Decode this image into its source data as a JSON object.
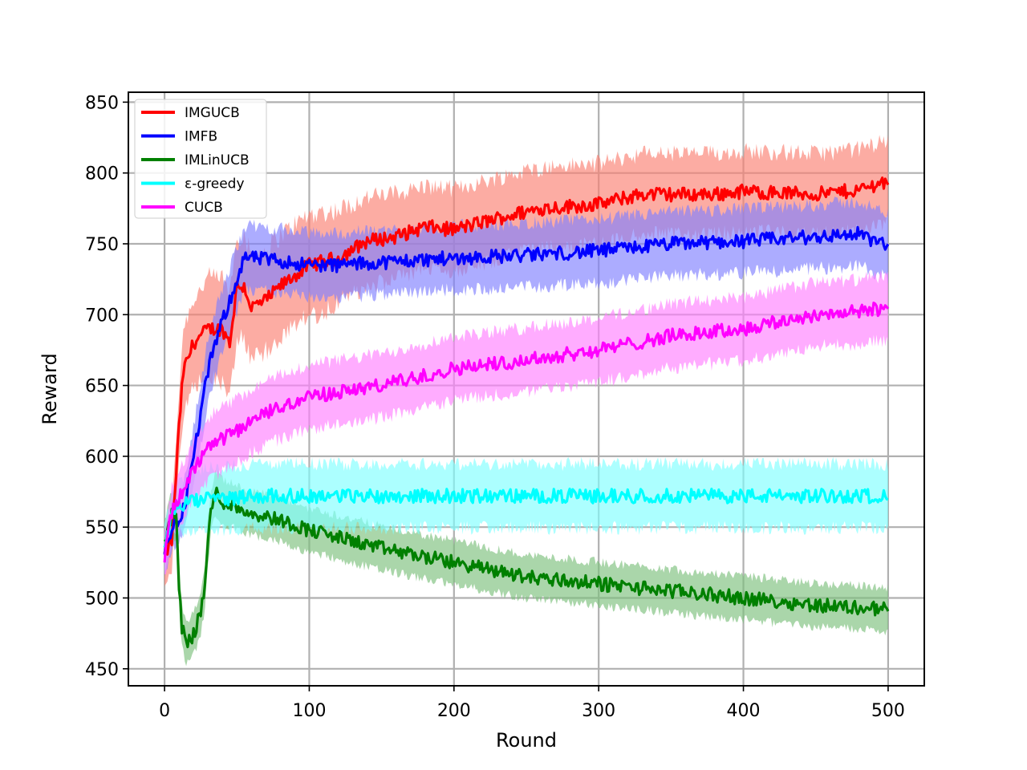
{
  "chart_data": {
    "type": "line",
    "title": "",
    "xlabel": "Round",
    "ylabel": "Reward",
    "xlim": [
      -25,
      525
    ],
    "ylim": [
      438,
      857
    ],
    "x_ticks": [
      0,
      100,
      200,
      300,
      400,
      500
    ],
    "x_tick_labels": [
      "0",
      "100",
      "200",
      "300",
      "400",
      "500"
    ],
    "y_ticks": [
      450,
      500,
      550,
      600,
      650,
      700,
      750,
      800,
      850
    ],
    "y_tick_labels": [
      "450",
      "500",
      "550",
      "600",
      "650",
      "700",
      "750",
      "800",
      "850"
    ],
    "grid": true,
    "legend_position": "upper-left",
    "shaded_band": true,
    "series": [
      {
        "name": "IMGUCB",
        "color": "#ff0000",
        "band_color": "#fa8072",
        "x": [
          0,
          5,
          10,
          13,
          20,
          30,
          40,
          45,
          50,
          55,
          60,
          70,
          80,
          100,
          120,
          140,
          160,
          180,
          200,
          230,
          260,
          300,
          330,
          350,
          380,
          400,
          450,
          480,
          500
        ],
        "y": [
          530,
          540,
          620,
          660,
          680,
          690,
          690,
          680,
          720,
          720,
          705,
          710,
          720,
          735,
          740,
          752,
          755,
          762,
          760,
          768,
          775,
          778,
          785,
          785,
          785,
          787,
          785,
          788,
          795
        ],
        "band": [
          20,
          20,
          25,
          30,
          30,
          35,
          35,
          35,
          35,
          35,
          35,
          35,
          35,
          35,
          33,
          30,
          30,
          28,
          28,
          28,
          28,
          28,
          28,
          28,
          28,
          28,
          28,
          28,
          28
        ]
      },
      {
        "name": "IMFB",
        "color": "#0000ff",
        "band_color": "#8080ff",
        "x": [
          0,
          5,
          10,
          15,
          20,
          25,
          30,
          35,
          40,
          45,
          50,
          55,
          60,
          80,
          100,
          120,
          150,
          200,
          250,
          300,
          350,
          400,
          450,
          480,
          500
        ],
        "y": [
          530,
          550,
          555,
          570,
          600,
          630,
          660,
          680,
          695,
          710,
          725,
          740,
          740,
          738,
          735,
          735,
          737,
          740,
          742,
          745,
          750,
          752,
          755,
          757,
          748
        ],
        "band": [
          15,
          15,
          15,
          18,
          20,
          22,
          22,
          22,
          22,
          22,
          22,
          22,
          22,
          22,
          22,
          22,
          22,
          22,
          22,
          22,
          22,
          22,
          22,
          22,
          22
        ]
      },
      {
        "name": "IMLinUCB",
        "color": "#008000",
        "band_color": "#7cc07c",
        "x": [
          0,
          5,
          8,
          10,
          12,
          15,
          18,
          20,
          22,
          25,
          28,
          30,
          32,
          35,
          40,
          60,
          80,
          100,
          150,
          200,
          250,
          300,
          350,
          400,
          450,
          500
        ],
        "y": [
          540,
          560,
          555,
          510,
          480,
          470,
          470,
          475,
          480,
          490,
          510,
          540,
          560,
          575,
          568,
          560,
          555,
          548,
          535,
          525,
          515,
          510,
          505,
          500,
          495,
          492
        ],
        "band": [
          15,
          15,
          15,
          15,
          15,
          15,
          15,
          15,
          15,
          15,
          15,
          15,
          15,
          15,
          15,
          15,
          15,
          15,
          15,
          15,
          15,
          15,
          15,
          15,
          15,
          15
        ]
      },
      {
        "name": "ε-greedy",
        "color": "#00ffff",
        "band_color": "#80ffff",
        "x": [
          0,
          5,
          10,
          20,
          30,
          40,
          60,
          100,
          150,
          200,
          300,
          400,
          500
        ],
        "y": [
          535,
          560,
          565,
          568,
          570,
          570,
          572,
          572,
          572,
          572,
          572,
          572,
          572
        ],
        "band": [
          15,
          15,
          18,
          20,
          22,
          22,
          22,
          22,
          22,
          22,
          22,
          22,
          22
        ]
      },
      {
        "name": "CUCB",
        "color": "#ff00ff",
        "band_color": "#ff80ff",
        "x": [
          0,
          5,
          10,
          15,
          20,
          30,
          40,
          50,
          60,
          80,
          100,
          150,
          200,
          250,
          300,
          350,
          400,
          450,
          480,
          500
        ],
        "y": [
          530,
          560,
          570,
          580,
          590,
          605,
          612,
          618,
          625,
          635,
          642,
          650,
          662,
          668,
          675,
          685,
          690,
          700,
          702,
          705
        ],
        "band": [
          15,
          18,
          20,
          20,
          22,
          22,
          22,
          22,
          22,
          22,
          22,
          22,
          22,
          22,
          22,
          22,
          22,
          22,
          22,
          22
        ]
      }
    ]
  }
}
